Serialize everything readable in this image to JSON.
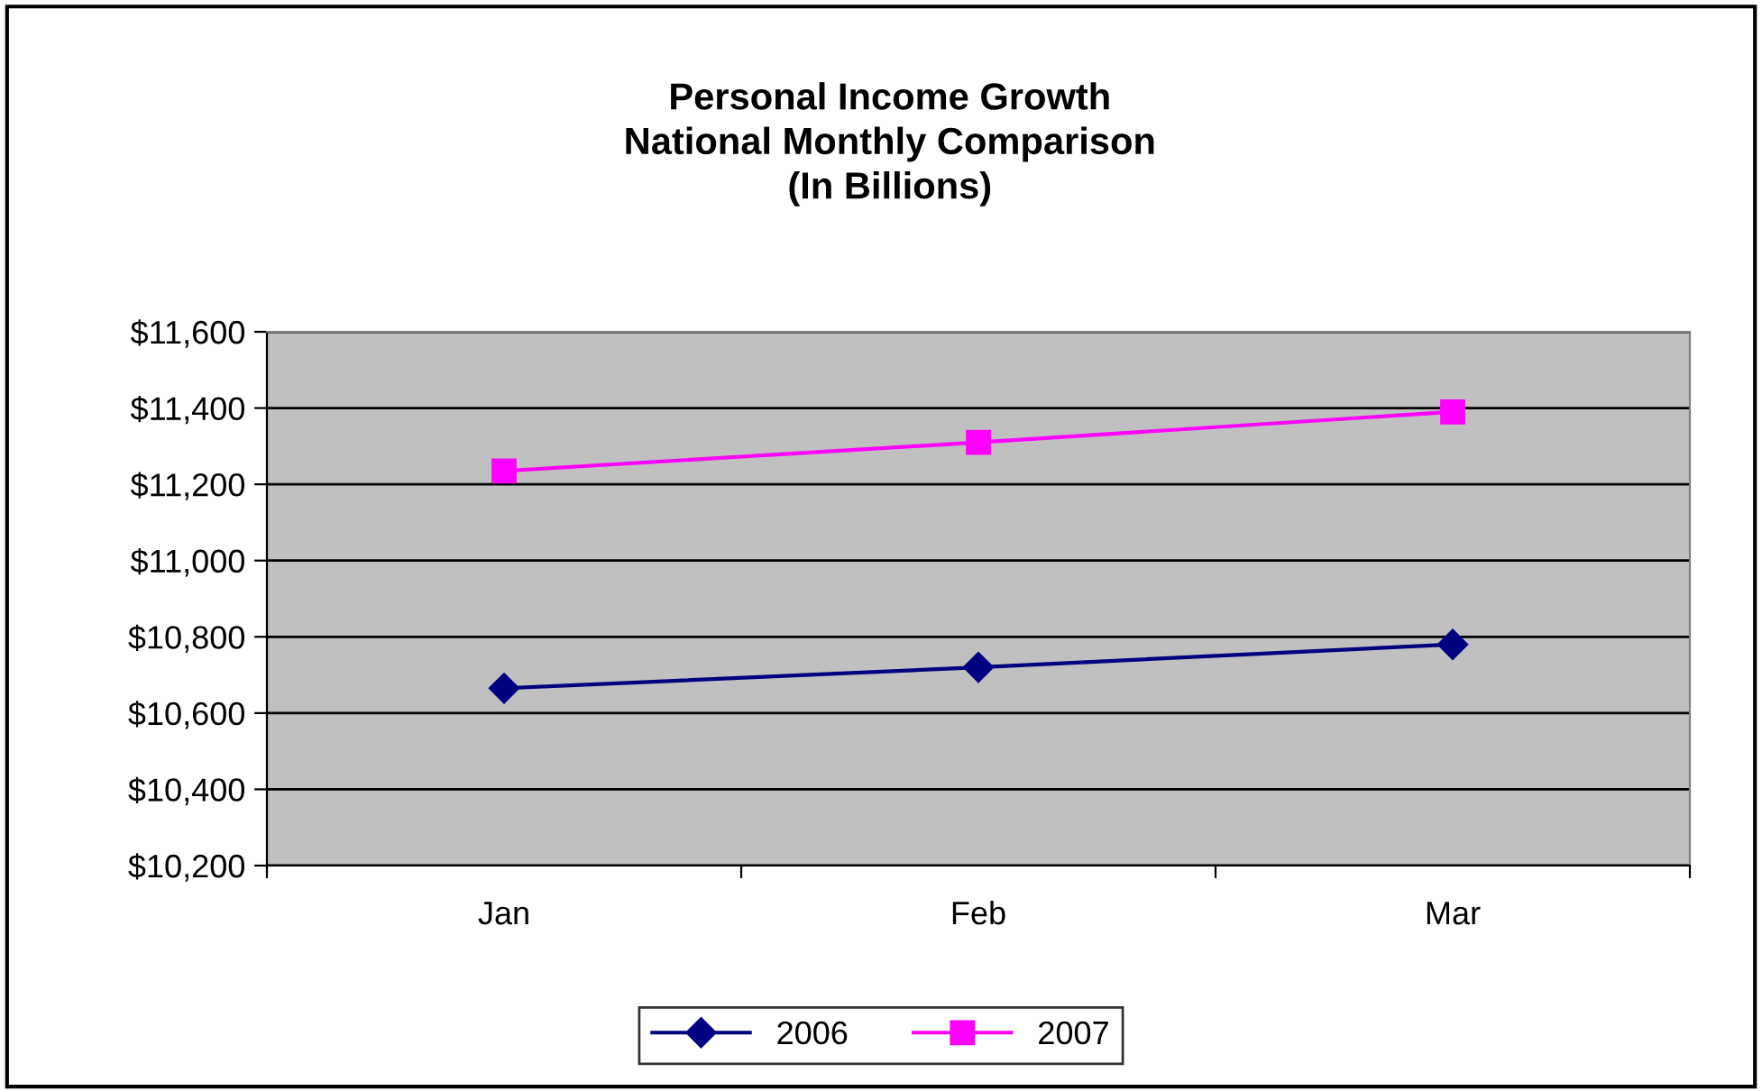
{
  "chart_data": {
    "type": "line",
    "title": "Personal Income Growth\nNational Monthly Comparison\n(In Billions)",
    "categories": [
      "Jan",
      "Feb",
      "Mar"
    ],
    "series": [
      {
        "name": "2006",
        "color": "#000080",
        "marker": "diamond",
        "values": [
          10665,
          10720,
          10780
        ]
      },
      {
        "name": "2007",
        "color": "#ff00ff",
        "marker": "square",
        "values": [
          11235,
          11310,
          11390
        ]
      }
    ],
    "ylim": [
      10200,
      11600
    ],
    "yticks": [
      {
        "value": 10200,
        "label": "$10,200"
      },
      {
        "value": 10400,
        "label": "$10,400"
      },
      {
        "value": 10600,
        "label": "$10,600"
      },
      {
        "value": 10800,
        "label": "$10,800"
      },
      {
        "value": 11000,
        "label": "$11,000"
      },
      {
        "value": 11200,
        "label": "$11,200"
      },
      {
        "value": 11400,
        "label": "$11,400"
      },
      {
        "value": 11600,
        "label": "$11,600"
      }
    ],
    "grid": "y",
    "legend": "bottom",
    "line_style": "solid"
  }
}
